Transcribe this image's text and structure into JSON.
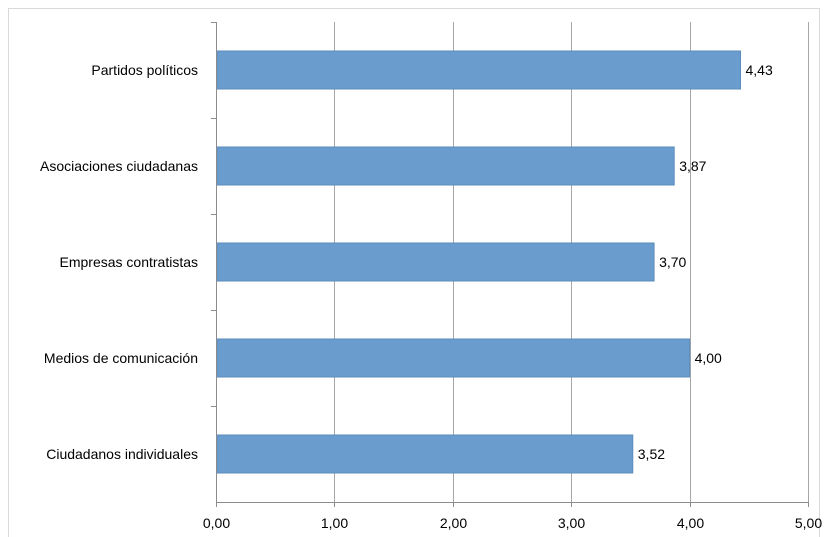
{
  "chart_data": {
    "type": "bar",
    "orientation": "horizontal",
    "categories": [
      "Partidos políticos",
      "Asociaciones ciudadanas",
      "Empresas contratistas",
      "Medios de comunicación",
      "Ciudadanos individuales"
    ],
    "values": [
      4.43,
      3.87,
      3.7,
      4.0,
      3.52
    ],
    "value_labels": [
      "4,43",
      "3,87",
      "3,70",
      "4,00",
      "3,52"
    ],
    "x_ticks": [
      "0,00",
      "1,00",
      "2,00",
      "3,00",
      "4,00",
      "5,00"
    ],
    "xlim": [
      0,
      5
    ],
    "title": "",
    "xlabel": "",
    "ylabel": "",
    "grid": "vertical",
    "legend": "none",
    "colors": {
      "bar": "#6a9cce",
      "bar_edge": "#5b8cbd",
      "grid": "#a6a6a6",
      "axis": "#8c8c8c",
      "frame": "#d9d9d9"
    }
  }
}
